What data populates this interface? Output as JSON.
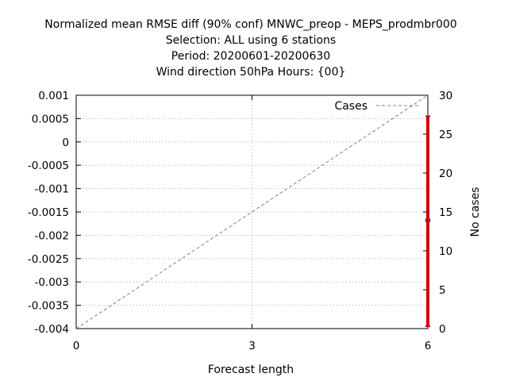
{
  "chart_data": {
    "type": "line",
    "title_lines": [
      "Normalized mean RMSE diff (90% conf) MNWC_preop - MEPS_prodmbr000",
      "Selection: ALL using      6 stations",
      "Period: 20200601-20200630",
      "Wind direction 50hPa   Hours: {00}"
    ],
    "xlabel": "Forecast length",
    "ylabel": "",
    "y2label": "No cases",
    "xlim": [
      0,
      6
    ],
    "ylim": [
      -0.004,
      0.001
    ],
    "y2lim": [
      0,
      30
    ],
    "xticks": [
      "0",
      "3",
      "6"
    ],
    "yticks": [
      "0.001",
      "0.0005",
      "0",
      "-0.0005",
      "-0.001",
      "-0.0015",
      "-0.002",
      "-0.0025",
      "-0.003",
      "-0.0035",
      "-0.004"
    ],
    "y2ticks": [
      "30",
      "25",
      "20",
      "15",
      "10",
      "5",
      "0"
    ],
    "grid": true,
    "legend_position": "top-right",
    "series": [
      {
        "name": "Cases",
        "axis": "y2",
        "style": "dashed",
        "color": "#808080",
        "x": [
          0,
          6
        ],
        "y": [
          0,
          30
        ]
      },
      {
        "name": "",
        "axis": "y",
        "style": "point",
        "color": "#3355cc",
        "x": [
          6
        ],
        "y": [
          -0.00168
        ]
      }
    ],
    "error_bars": [
      {
        "x": 6,
        "low": -0.00395,
        "high": 0.00055,
        "color": "#cc0000"
      }
    ]
  }
}
